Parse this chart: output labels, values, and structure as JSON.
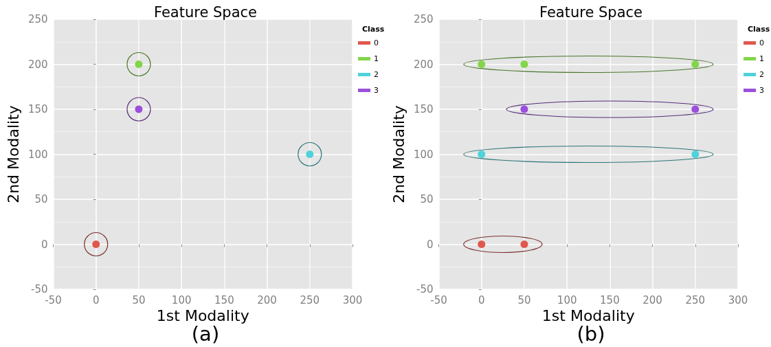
{
  "chart_data": [
    {
      "type": "scatter",
      "title": "Feature Space",
      "xlabel": "1st Modality",
      "ylabel": "2nd Modality",
      "legend_title": "Class",
      "annotations": [
        "(a)"
      ],
      "series": [
        {
          "name": "0",
          "color": "#e0584e",
          "x": [
            0
          ],
          "values": [
            0
          ]
        },
        {
          "name": "1",
          "color": "#82d64a",
          "x": [
            50
          ],
          "values": [
            200
          ]
        },
        {
          "name": "2",
          "color": "#4fd2db",
          "x": [
            250
          ],
          "values": [
            100
          ]
        },
        {
          "name": "3",
          "color": "#9b4fdc",
          "x": [
            50
          ],
          "values": [
            150
          ]
        }
      ],
      "xlim": [
        -50,
        300
      ],
      "xticks": [
        -50,
        0,
        50,
        100,
        150,
        200,
        250,
        300
      ],
      "ylim": [
        -50,
        250
      ],
      "yticks": [
        -50,
        0,
        50,
        100,
        150,
        200,
        250
      ],
      "grid": true,
      "legend": "right",
      "marker": "circle"
    },
    {
      "type": "scatter",
      "title": "Feature Space",
      "xlabel": "1st Modality",
      "ylabel": "2nd Modality",
      "legend_title": "Class",
      "annotations": [
        "(b)"
      ],
      "series": [
        {
          "name": "0",
          "color": "#e0584e",
          "x": [
            0,
            50
          ],
          "values": [
            0,
            0
          ]
        },
        {
          "name": "1",
          "color": "#82d64a",
          "x": [
            0,
            50,
            250
          ],
          "values": [
            200,
            200,
            200
          ]
        },
        {
          "name": "2",
          "color": "#4fd2db",
          "x": [
            0,
            250
          ],
          "values": [
            100,
            100
          ]
        },
        {
          "name": "3",
          "color": "#9b4fdc",
          "x": [
            50,
            250
          ],
          "values": [
            150,
            150
          ]
        }
      ],
      "xlim": [
        -50,
        300
      ],
      "xticks": [
        -50,
        0,
        50,
        100,
        150,
        200,
        250,
        300
      ],
      "ylim": [
        -50,
        250
      ],
      "yticks": [
        -50,
        0,
        50,
        100,
        150,
        200,
        250
      ],
      "grid": true,
      "legend": "right",
      "marker": "circle"
    }
  ]
}
